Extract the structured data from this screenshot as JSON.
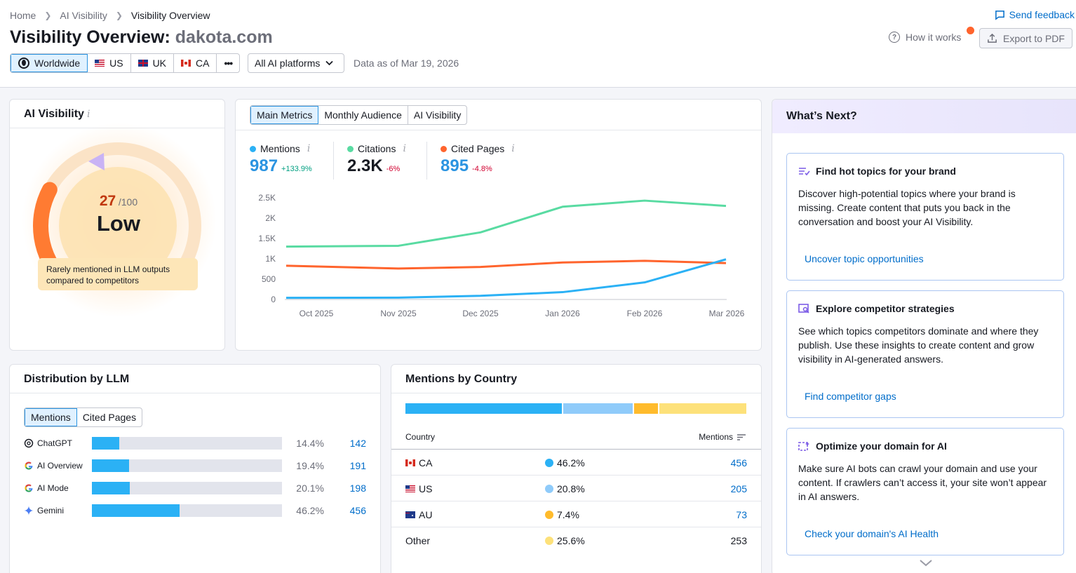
{
  "breadcrumb": [
    "Home",
    "AI Visibility",
    "Visibility Overview"
  ],
  "header": {
    "title_prefix": "Visibility Overview:",
    "domain": "dakota.com",
    "send_feedback": "Send feedback",
    "how_it_works": "How it works",
    "export": "Export to PDF"
  },
  "filters": {
    "regions": [
      {
        "label": "Worldwide",
        "icon": "globe-icon",
        "active": true
      },
      {
        "label": "US",
        "icon": "us-flag-icon",
        "active": false
      },
      {
        "label": "UK",
        "icon": "uk-flag-icon",
        "active": false
      },
      {
        "label": "CA",
        "icon": "ca-flag-icon",
        "active": false
      }
    ],
    "more": "•••",
    "platform": "All AI platforms",
    "data_as_of": "Data as of Mar 19, 2026"
  },
  "ai_visibility": {
    "title": "AI Visibility",
    "score": "27",
    "score_max": "/100",
    "level": "Low",
    "note": "Rarely mentioned in LLM outputs compared to competitors",
    "score_fraction": 0.27,
    "colors": {
      "arc": "#ff7b32",
      "marker": "#c9b3f5"
    }
  },
  "metrics_card": {
    "tabs": [
      "Main Metrics",
      "Monthly Audience",
      "AI Visibility"
    ],
    "metrics": [
      {
        "label": "Mentions",
        "value": "987",
        "change": "+133.9%",
        "color": "#2bb1f5",
        "value_color": "#2b94e1",
        "change_color": "#009f81"
      },
      {
        "label": "Citations",
        "value": "2.3K",
        "change": "-6%",
        "color": "#59dba2",
        "value_color": "#171a22",
        "change_color": "#d1002f"
      },
      {
        "label": "Cited Pages",
        "value": "895",
        "change": "-4.8%",
        "color": "#ff642d",
        "value_color": "#2b94e1",
        "change_color": "#d1002f"
      }
    ]
  },
  "chart_data": {
    "type": "line",
    "categories": [
      "Oct 2025",
      "Nov 2025",
      "Dec 2025",
      "Jan 2026",
      "Feb 2026",
      "Mar 2026"
    ],
    "y_ticks": [
      "0",
      "500",
      "1K",
      "1.5K",
      "2K",
      "2.5K"
    ],
    "ylim": [
      0,
      2500
    ],
    "grid": true,
    "series": [
      {
        "name": "Citations",
        "color": "#59dba2",
        "values": [
          1300,
          1320,
          1650,
          2280,
          2430,
          2300
        ]
      },
      {
        "name": "Cited Pages",
        "color": "#ff642d",
        "values": [
          830,
          760,
          800,
          910,
          950,
          895
        ]
      },
      {
        "name": "Mentions",
        "color": "#2bb1f5",
        "values": [
          40,
          45,
          90,
          180,
          420,
          987
        ]
      }
    ]
  },
  "distribution": {
    "title": "Distribution by LLM",
    "tabs": [
      "Mentions",
      "Cited Pages"
    ],
    "rows": [
      {
        "name": "ChatGPT",
        "icon": "chatgpt-icon",
        "share": 14.4,
        "pct": "14.4%",
        "count": "142"
      },
      {
        "name": "AI Overview",
        "icon": "google-icon",
        "share": 19.4,
        "pct": "19.4%",
        "count": "191"
      },
      {
        "name": "AI Mode",
        "icon": "google-icon",
        "share": 20.1,
        "pct": "20.1%",
        "count": "198"
      },
      {
        "name": "Gemini",
        "icon": "gemini-icon",
        "share": 46.2,
        "pct": "46.2%",
        "count": "456"
      }
    ]
  },
  "country": {
    "title": "Mentions by Country",
    "col_country": "Country",
    "col_mentions": "Mentions",
    "segments": [
      {
        "share": 46.2,
        "color": "#2bb1f5"
      },
      {
        "share": 20.8,
        "color": "#8fcbfa"
      },
      {
        "share": 7.4,
        "color": "#ffbb2c"
      },
      {
        "share": 25.6,
        "color": "#fde17a"
      }
    ],
    "rows": [
      {
        "country": "CA",
        "flag": "ca",
        "share": "46.2%",
        "color": "#2bb1f5",
        "mentions": "456",
        "link": true
      },
      {
        "country": "US",
        "flag": "us",
        "share": "20.8%",
        "color": "#8fcbfa",
        "mentions": "205",
        "link": true
      },
      {
        "country": "AU",
        "flag": "au",
        "share": "7.4%",
        "color": "#ffbb2c",
        "mentions": "73",
        "link": true
      },
      {
        "country": "Other",
        "flag": "",
        "share": "25.6%",
        "color": "#fde17a",
        "mentions": "253",
        "link": false
      }
    ]
  },
  "whats_next": {
    "title": "What’s Next?",
    "cards": [
      {
        "title": "Find hot topics for your brand",
        "text": "Discover high-potential topics where your brand is missing. Create content that puts you back in the conversation and boost your AI Visibility.",
        "link": "Uncover topic opportunities",
        "icon": "topics-icon"
      },
      {
        "title": "Explore competitor strategies",
        "text": "See which topics competitors dominate and where they publish. Use these insights to create content and grow visibility in AI-generated answers.",
        "link": "Find competitor gaps",
        "icon": "competitor-icon"
      },
      {
        "title": "Optimize your domain for AI",
        "text": "Make sure AI bots can crawl your domain and use your content. If crawlers can’t access it, your site won’t appear in AI answers.",
        "link": "Check your domain's AI Health",
        "icon": "optimize-icon"
      }
    ]
  }
}
